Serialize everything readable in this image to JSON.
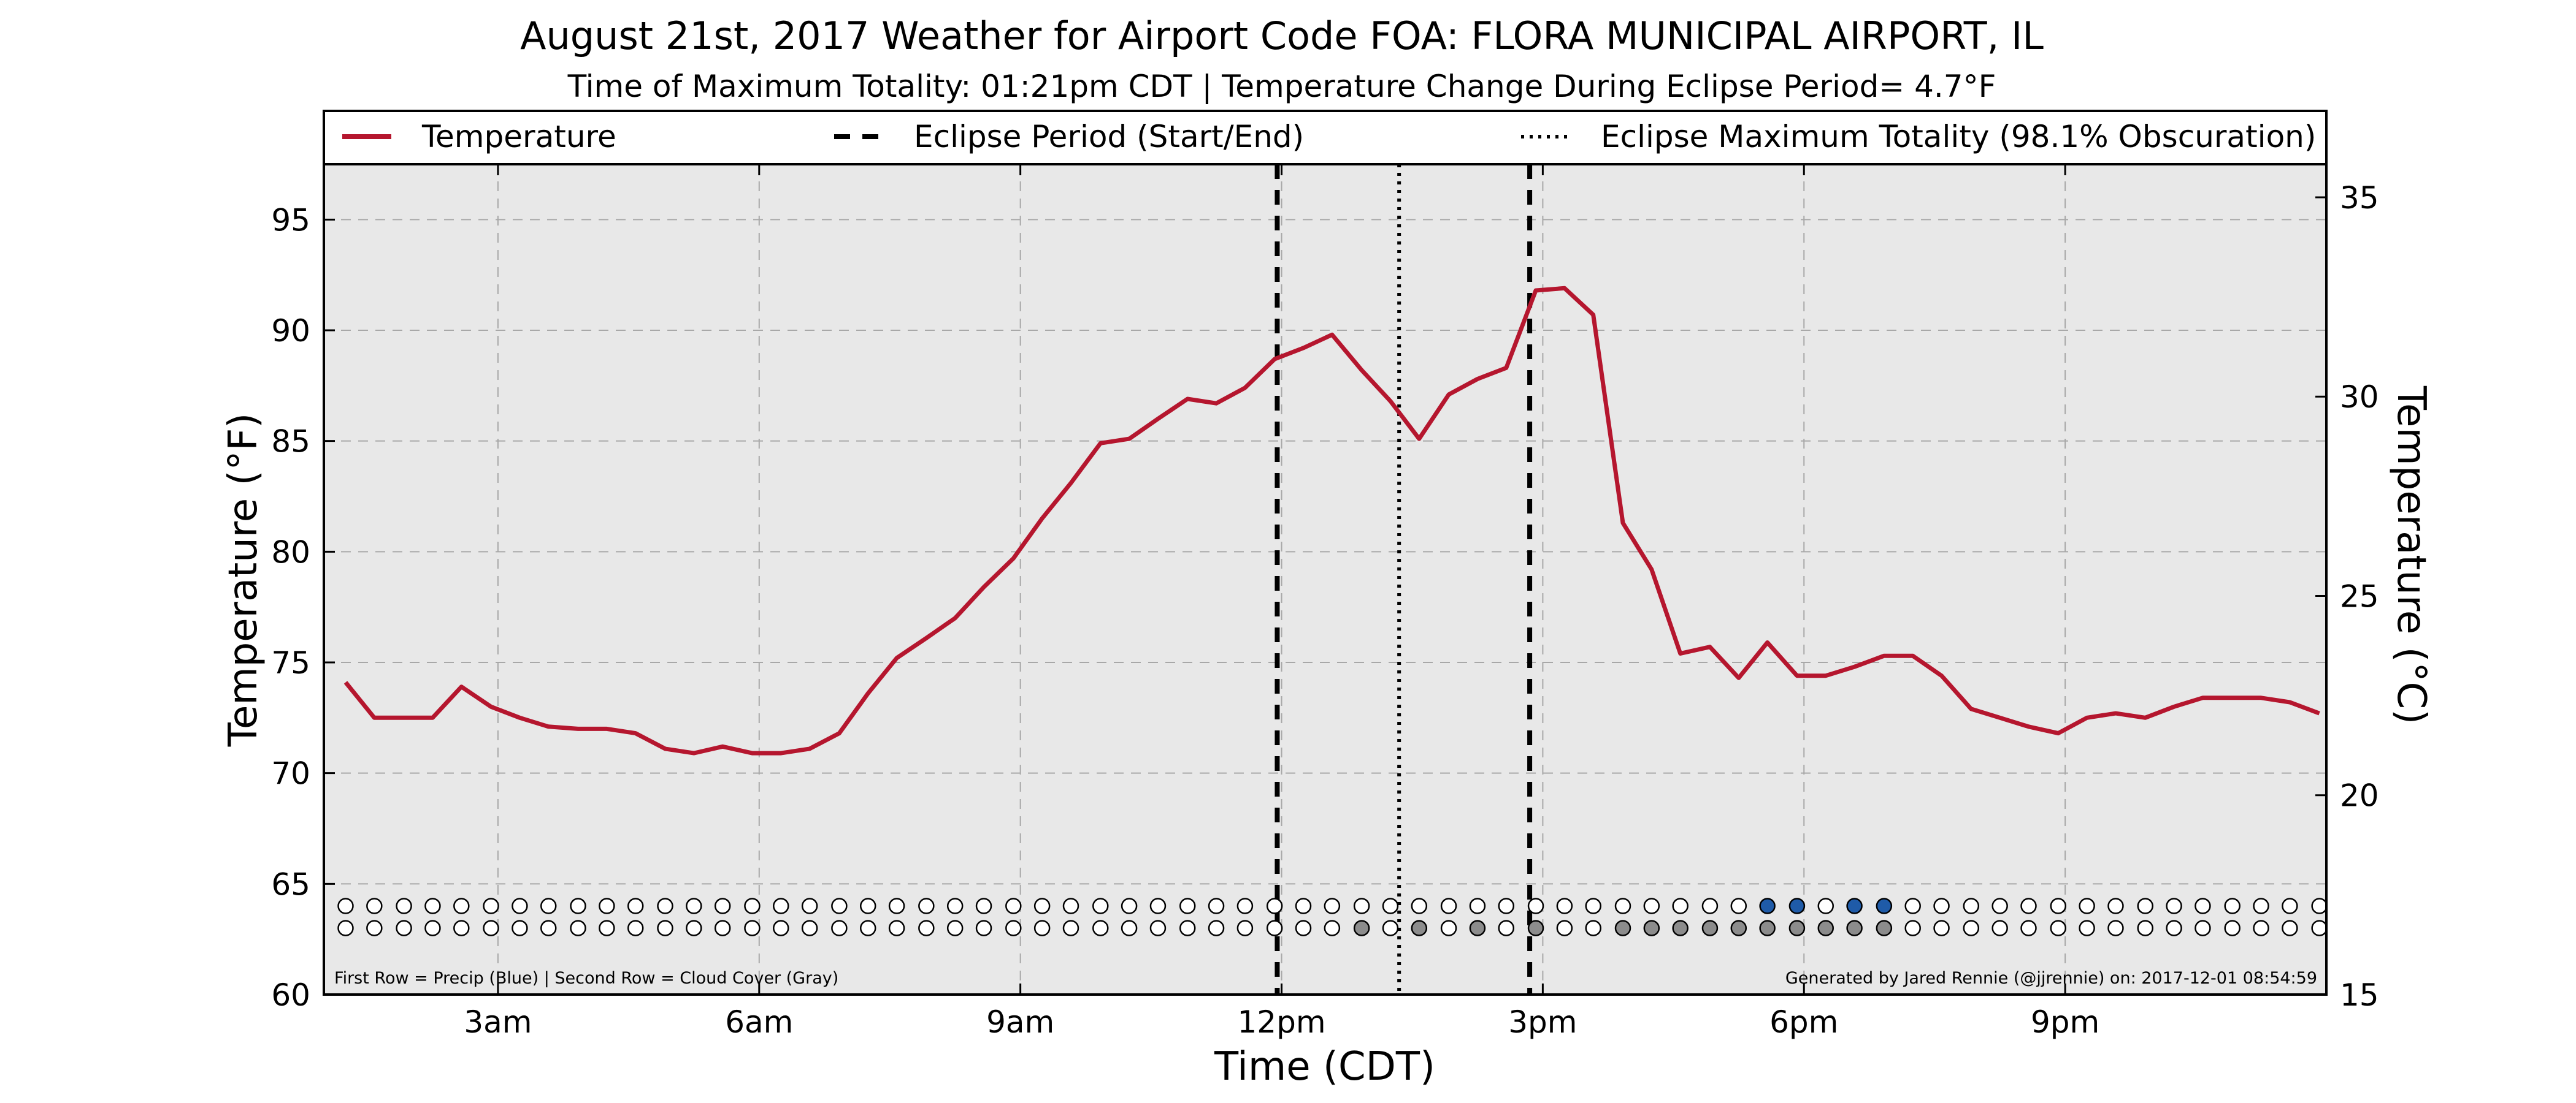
{
  "chart_data": {
    "type": "line",
    "title": "August 21st, 2017 Weather for Airport Code FOA: FLORA MUNICIPAL AIRPORT, IL",
    "subtitle": "Time of Maximum Totality: 01:21pm CDT | Temperature Change During Eclipse Period= 4.7°F",
    "xlabel": "Time (CDT)",
    "ylabel": "Temperature (°F)",
    "ylabel_right": "Temperature (°C)",
    "x_unit": "hours (CDT, decimal)",
    "xlim": [
      1.0,
      24.0
    ],
    "ylim": [
      60,
      97.5
    ],
    "ylim_right": [
      15,
      35.83
    ],
    "x_ticks": [
      3,
      6,
      9,
      12,
      15,
      18,
      21
    ],
    "x_tick_labels": [
      "3am",
      "6am",
      "9am",
      "12pm",
      "3pm",
      "6pm",
      "9pm"
    ],
    "y_ticks": [
      60,
      65,
      70,
      75,
      80,
      85,
      90,
      95
    ],
    "y_tick_labels": [
      "60",
      "65",
      "70",
      "75",
      "80",
      "85",
      "90",
      "95"
    ],
    "y_ticks_right": [
      15,
      20,
      25,
      30,
      35
    ],
    "y_tick_labels_right": [
      "15",
      "20",
      "25",
      "30",
      "35"
    ],
    "grid": true,
    "legend": {
      "placement": "top",
      "entries": [
        {
          "label": "Temperature",
          "style": "solid"
        },
        {
          "label": "Eclipse Period (Start/End)",
          "style": "dashed"
        },
        {
          "label": "Eclipse Maximum Totality (98.1% Obscuration)",
          "style": "dotted"
        }
      ]
    },
    "series": [
      {
        "name": "Temperature",
        "color": "#b5162e",
        "x": [
          1.25,
          1.58,
          1.92,
          2.25,
          2.58,
          2.92,
          3.25,
          3.58,
          3.92,
          4.25,
          4.58,
          4.92,
          5.25,
          5.58,
          5.92,
          6.25,
          6.58,
          6.92,
          7.25,
          7.58,
          7.92,
          8.25,
          8.58,
          8.92,
          9.25,
          9.58,
          9.92,
          10.25,
          10.58,
          10.92,
          11.25,
          11.58,
          11.92,
          12.25,
          12.58,
          12.92,
          13.25,
          13.58,
          13.92,
          14.25,
          14.58,
          14.92,
          15.25,
          15.58,
          15.92,
          16.25,
          16.58,
          16.92,
          17.25,
          17.58,
          17.92,
          18.25,
          18.58,
          18.92,
          19.25,
          19.58,
          19.92,
          20.25,
          20.58,
          20.92,
          21.25,
          21.58,
          21.92,
          22.25,
          22.58,
          22.92,
          23.25,
          23.58,
          23.92
        ],
        "values": [
          74.1,
          72.5,
          72.5,
          72.5,
          73.9,
          73.0,
          72.5,
          72.1,
          72.0,
          72.0,
          71.8,
          71.1,
          70.9,
          71.2,
          70.9,
          70.9,
          71.1,
          71.8,
          73.6,
          75.2,
          76.1,
          77.0,
          78.4,
          79.7,
          81.5,
          83.1,
          84.9,
          85.1,
          86.0,
          86.9,
          86.7,
          87.4,
          88.7,
          89.2,
          89.8,
          88.2,
          86.8,
          85.1,
          87.1,
          87.8,
          88.3,
          91.8,
          91.9,
          90.7,
          81.3,
          79.2,
          75.4,
          75.7,
          74.3,
          75.9,
          74.4,
          74.4,
          74.8,
          75.3,
          75.3,
          74.4,
          72.9,
          72.5,
          72.1,
          71.8,
          72.5,
          72.7,
          72.5,
          73.0,
          73.4,
          73.4,
          73.4,
          73.2,
          72.7
        ]
      }
    ],
    "eclipse": {
      "start": 11.95,
      "max": 13.35,
      "end": 14.85
    },
    "indicator_rows": {
      "y_precip": 64.0,
      "y_cloud": 63.0,
      "precip_color": "#1f5ba8",
      "cloud_color": "#8c8c8c",
      "x": [
        1.25,
        1.58,
        1.92,
        2.25,
        2.58,
        2.92,
        3.25,
        3.58,
        3.92,
        4.25,
        4.58,
        4.92,
        5.25,
        5.58,
        5.92,
        6.25,
        6.58,
        6.92,
        7.25,
        7.58,
        7.92,
        8.25,
        8.58,
        8.92,
        9.25,
        9.58,
        9.92,
        10.25,
        10.58,
        10.92,
        11.25,
        11.58,
        11.92,
        12.25,
        12.58,
        12.92,
        13.25,
        13.58,
        13.92,
        14.25,
        14.58,
        14.92,
        15.25,
        15.58,
        15.92,
        16.25,
        16.58,
        16.92,
        17.25,
        17.58,
        17.92,
        18.25,
        18.58,
        18.92,
        19.25,
        19.58,
        19.92,
        20.25,
        20.58,
        20.92,
        21.25,
        21.58,
        21.92,
        22.25,
        22.58,
        22.92,
        23.25,
        23.58,
        23.92
      ],
      "precip": [
        0,
        0,
        0,
        0,
        0,
        0,
        0,
        0,
        0,
        0,
        0,
        0,
        0,
        0,
        0,
        0,
        0,
        0,
        0,
        0,
        0,
        0,
        0,
        0,
        0,
        0,
        0,
        0,
        0,
        0,
        0,
        0,
        0,
        0,
        0,
        0,
        0,
        0,
        0,
        0,
        0,
        0,
        0,
        0,
        0,
        0,
        0,
        0,
        0,
        1,
        1,
        0,
        1,
        1,
        0,
        0,
        0,
        0,
        0,
        0,
        0,
        0,
        0,
        0,
        0,
        0,
        0,
        0,
        0
      ],
      "cloud": [
        0,
        0,
        0,
        0,
        0,
        0,
        0,
        0,
        0,
        0,
        0,
        0,
        0,
        0,
        0,
        0,
        0,
        0,
        0,
        0,
        0,
        0,
        0,
        0,
        0,
        0,
        0,
        0,
        0,
        0,
        0,
        0,
        0,
        0,
        0,
        1,
        0,
        1,
        0,
        1,
        0,
        1,
        0,
        0,
        1,
        1,
        1,
        1,
        1,
        1,
        1,
        1,
        1,
        1,
        0,
        0,
        0,
        0,
        0,
        0,
        0,
        0,
        0,
        0,
        0,
        0,
        0,
        0,
        0
      ]
    },
    "footnote_left": "First Row = Precip (Blue) | Second Row = Cloud Cover (Gray)",
    "footnote_right": "Generated by Jared Rennie (@jjrennie) on: 2017-12-01 08:54:59"
  }
}
